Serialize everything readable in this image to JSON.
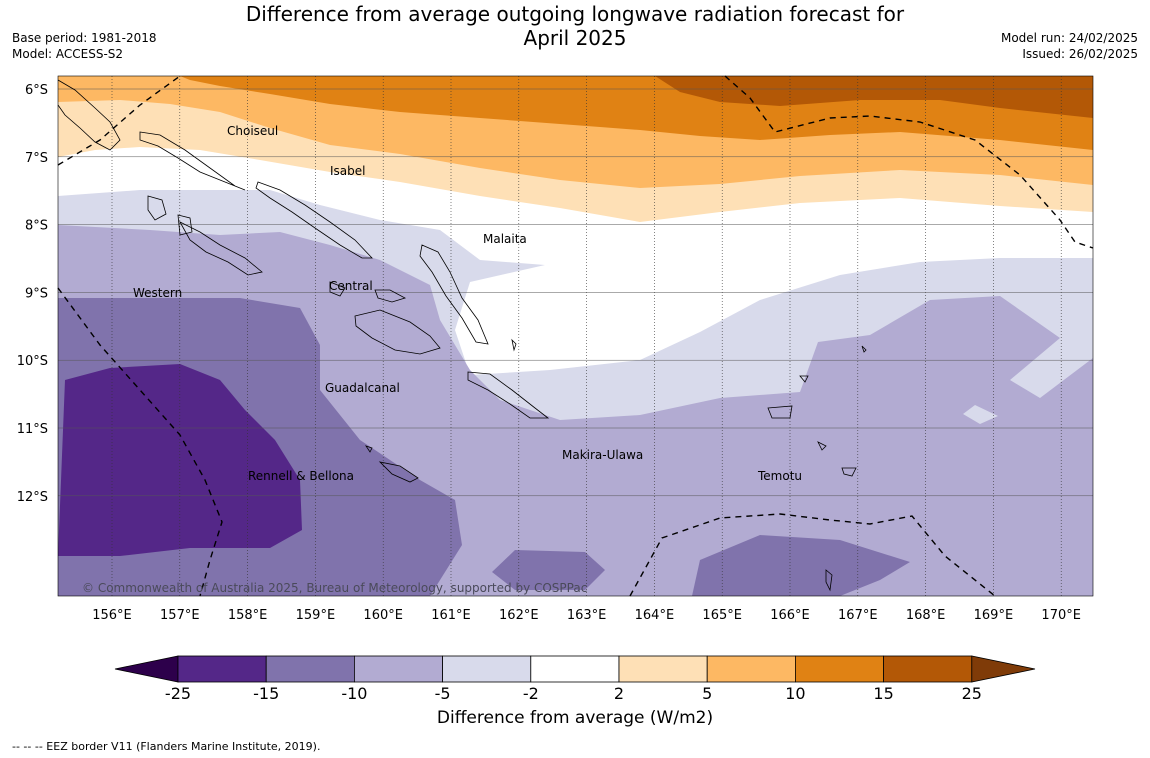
{
  "title_line1": "Difference from average outgoing longwave radiation forecast for",
  "title_line2": "April 2025",
  "meta_left": {
    "base_period": "Base period: 1981-2018",
    "model": "Model: ACCESS-S2"
  },
  "meta_right": {
    "model_run": "Model run: 24/02/2025",
    "issued": "Issued: 26/02/2025"
  },
  "map": {
    "lon_ticks": [
      "156°E",
      "157°E",
      "158°E",
      "159°E",
      "160°E",
      "161°E",
      "162°E",
      "163°E",
      "164°E",
      "165°E",
      "166°E",
      "167°E",
      "168°E",
      "169°E",
      "170°E"
    ],
    "lat_ticks": [
      "6°S",
      "7°S",
      "8°S",
      "9°S",
      "10°S",
      "11°S",
      "12°S"
    ],
    "region_labels": [
      "Choiseul",
      "Isabel",
      "Malaita",
      "Western",
      "Central",
      "Guadalcanal",
      "Makira-Ulawa",
      "Rennell & Bellona",
      "Temotu"
    ],
    "copyright": "© Commonwealth of Australia 2025, Bureau of Meteorology, supported by COSPPac"
  },
  "colorbar": {
    "title": "Difference from average (W/m2)",
    "ticks": [
      "-25",
      "-15",
      "-10",
      "-5",
      "-2",
      "2",
      "5",
      "10",
      "15",
      "25"
    ],
    "colors": [
      "#2d004b",
      "#542788",
      "#8073ac",
      "#b2abd2",
      "#d8daeb",
      "#ffffff",
      "#fee0b6",
      "#fdb863",
      "#e08214",
      "#b35806",
      "#7f3b08"
    ]
  },
  "footer": "--  --  -- EEZ border V11 (Flanders Marine Institute, 2019)."
}
